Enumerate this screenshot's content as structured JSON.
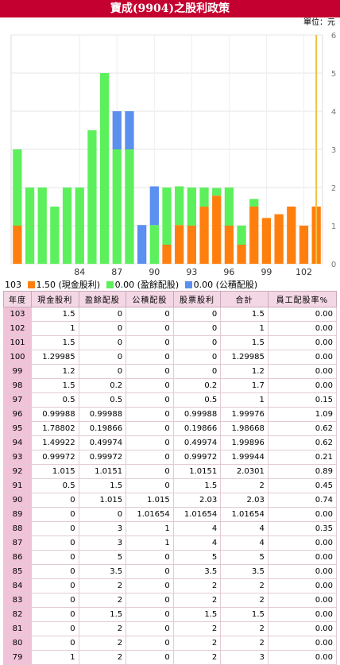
{
  "header": {
    "title": "寶成(9904)之股利政策",
    "unit": "單位：元"
  },
  "legend": [
    {
      "label": "103",
      "color": ""
    },
    {
      "label": "1.50 (現金股利)",
      "color": "#ff7f0e"
    },
    {
      "label": "0.00 (盈餘配股)",
      "color": "#5cf05c"
    },
    {
      "label": "0.00 (公積配股)",
      "color": "#5b8ff0"
    }
  ],
  "chart_data": {
    "type": "bar",
    "stacked": true,
    "categories": [
      "79",
      "80",
      "81",
      "82",
      "83",
      "84",
      "85",
      "86",
      "87",
      "88",
      "89",
      "90",
      "91",
      "92",
      "93",
      "94",
      "95",
      "96",
      "97",
      "98",
      "99",
      "100",
      "101",
      "102",
      "103"
    ],
    "x_tick_labels": [
      "84",
      "87",
      "90",
      "93",
      "96",
      "99",
      "102"
    ],
    "ylim": [
      0,
      6
    ],
    "y_ticks": [
      0,
      1,
      2,
      3,
      4,
      5,
      6
    ],
    "series": [
      {
        "name": "現金股利",
        "color": "#ff7f0e",
        "values": [
          1,
          0,
          0,
          0,
          0,
          0,
          0,
          0,
          0,
          0,
          0,
          0,
          0.5,
          1.015,
          0.99972,
          1.49922,
          1.78802,
          0.99988,
          0.5,
          1.5,
          1.2,
          1.29985,
          1.5,
          1,
          1.5
        ]
      },
      {
        "name": "盈餘配股",
        "color": "#5cf05c",
        "values": [
          2,
          2,
          2,
          1.5,
          2,
          2,
          3.5,
          5,
          3,
          3,
          0,
          1.015,
          1.5,
          1.0151,
          0.99972,
          0.49974,
          0.19866,
          0.99988,
          0.5,
          0.2,
          0,
          0,
          0,
          0,
          0
        ]
      },
      {
        "name": "公積配股",
        "color": "#5b8ff0",
        "values": [
          0,
          0,
          0,
          0,
          0,
          0,
          0,
          0,
          1,
          1,
          1.01654,
          1.015,
          0,
          0,
          0,
          0,
          0,
          0,
          0,
          0,
          0,
          0,
          0,
          0,
          0
        ]
      }
    ]
  },
  "table": {
    "headers": [
      "年度",
      "現金股利",
      "盈餘配股",
      "公積配股",
      "股票股利",
      "合計",
      "員工配股率%"
    ],
    "rows": [
      [
        "103",
        "1.5",
        "0",
        "0",
        "0",
        "1.5",
        "0.00"
      ],
      [
        "102",
        "1",
        "0",
        "0",
        "0",
        "1",
        "0.00"
      ],
      [
        "101",
        "1.5",
        "0",
        "0",
        "0",
        "1.5",
        "0.00"
      ],
      [
        "100",
        "1.29985",
        "0",
        "0",
        "0",
        "1.29985",
        "0.00"
      ],
      [
        "99",
        "1.2",
        "0",
        "0",
        "0",
        "1.2",
        "0.00"
      ],
      [
        "98",
        "1.5",
        "0.2",
        "0",
        "0.2",
        "1.7",
        "0.00"
      ],
      [
        "97",
        "0.5",
        "0.5",
        "0",
        "0.5",
        "1",
        "0.15"
      ],
      [
        "96",
        "0.99988",
        "0.99988",
        "0",
        "0.99988",
        "1.99976",
        "1.09"
      ],
      [
        "95",
        "1.78802",
        "0.19866",
        "0",
        "0.19866",
        "1.98668",
        "0.62"
      ],
      [
        "94",
        "1.49922",
        "0.49974",
        "0",
        "0.49974",
        "1.99896",
        "0.62"
      ],
      [
        "93",
        "0.99972",
        "0.99972",
        "0",
        "0.99972",
        "1.99944",
        "0.21"
      ],
      [
        "92",
        "1.015",
        "1.0151",
        "0",
        "1.0151",
        "2.0301",
        "0.89"
      ],
      [
        "91",
        "0.5",
        "1.5",
        "0",
        "1.5",
        "2",
        "0.45"
      ],
      [
        "90",
        "0",
        "1.015",
        "1.015",
        "2.03",
        "2.03",
        "0.74"
      ],
      [
        "89",
        "0",
        "0",
        "1.01654",
        "1.01654",
        "1.01654",
        "0.00"
      ],
      [
        "88",
        "0",
        "3",
        "1",
        "4",
        "4",
        "0.35"
      ],
      [
        "87",
        "0",
        "3",
        "1",
        "4",
        "4",
        "0.00"
      ],
      [
        "86",
        "0",
        "5",
        "0",
        "5",
        "5",
        "0.00"
      ],
      [
        "85",
        "0",
        "3.5",
        "0",
        "3.5",
        "3.5",
        "0.00"
      ],
      [
        "84",
        "0",
        "2",
        "0",
        "2",
        "2",
        "0.00"
      ],
      [
        "83",
        "0",
        "2",
        "0",
        "2",
        "2",
        "0.00"
      ],
      [
        "82",
        "0",
        "1.5",
        "0",
        "1.5",
        "1.5",
        "0.00"
      ],
      [
        "81",
        "0",
        "2",
        "0",
        "2",
        "2",
        "0.00"
      ],
      [
        "80",
        "0",
        "2",
        "0",
        "2",
        "2",
        "0.00"
      ],
      [
        "79",
        "1",
        "2",
        "0",
        "2",
        "3",
        "0.00"
      ]
    ]
  }
}
